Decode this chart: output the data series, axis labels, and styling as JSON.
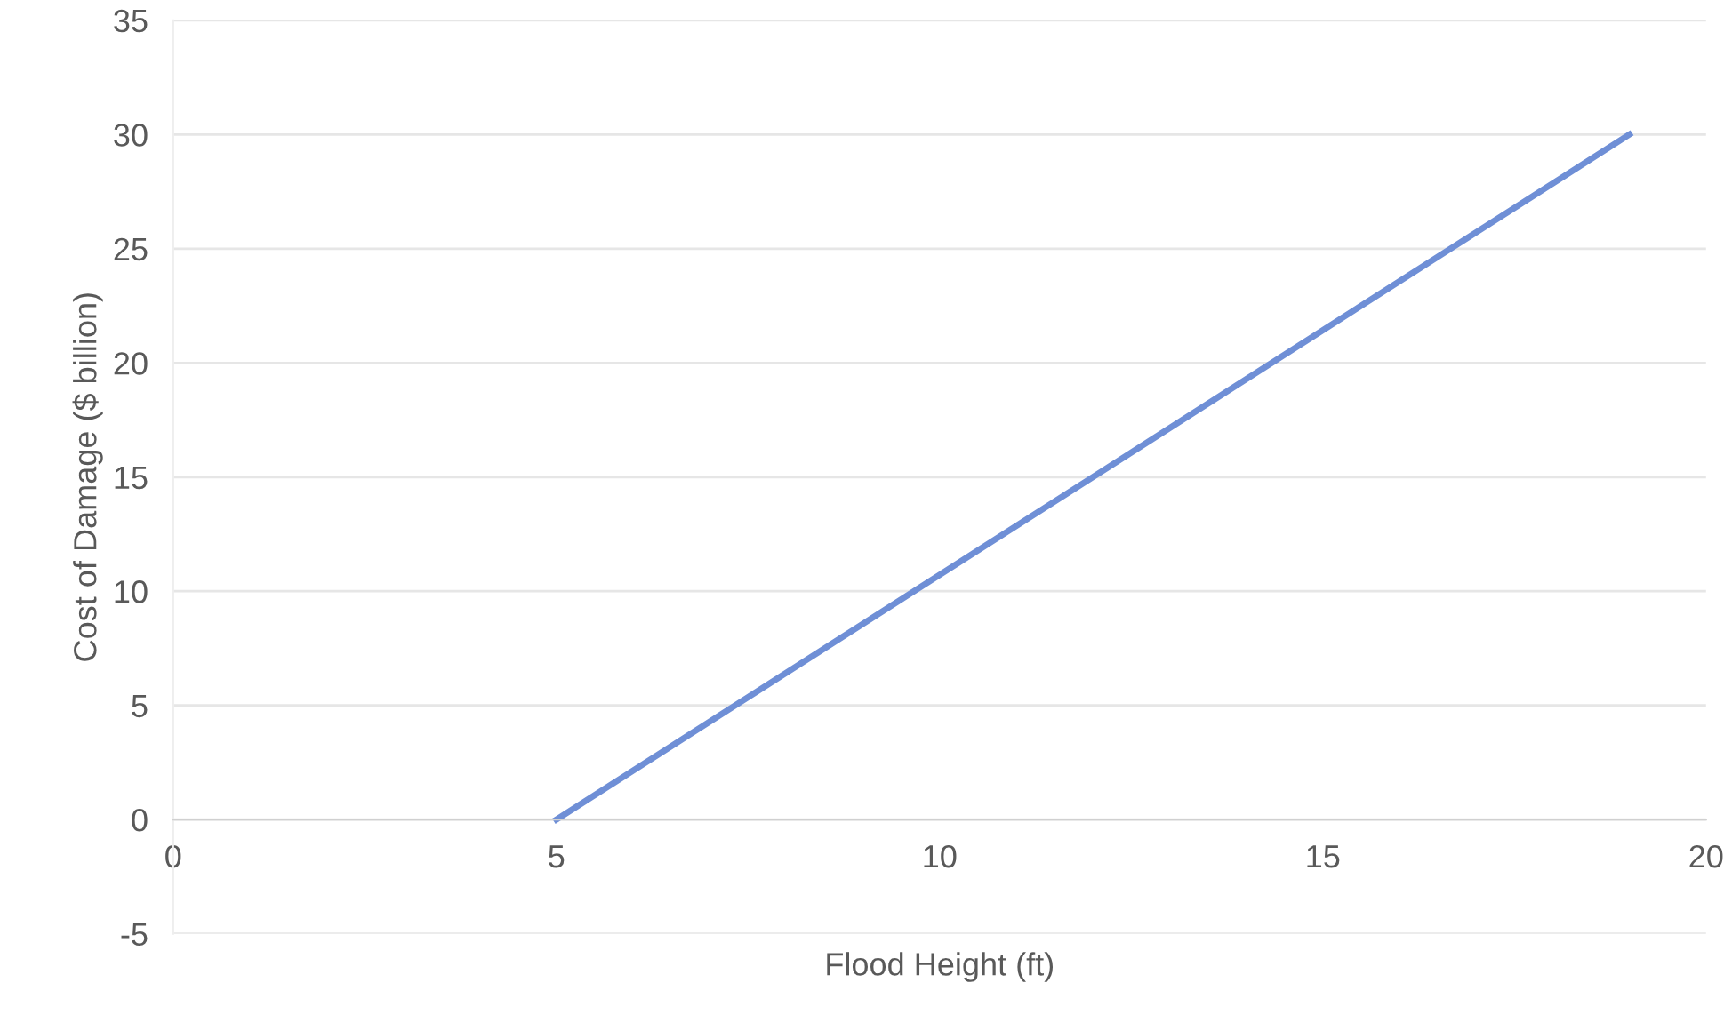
{
  "chart_data": {
    "type": "line",
    "xlabel": "Flood Height (ft)",
    "ylabel": "Cost of Damage ($ billion)",
    "series": [
      {
        "color": "#6f8fd6",
        "x": [
          5,
          19
        ],
        "values": [
          0,
          30
        ]
      }
    ],
    "xlim": [
      0,
      20
    ],
    "xticks": [
      0,
      5,
      10,
      15,
      20
    ],
    "ylim": [
      -5,
      35
    ],
    "yticks": [
      -5,
      0,
      5,
      10,
      15,
      20,
      25,
      30,
      35
    ],
    "grid": "y",
    "marker": "none",
    "line_style": "solid"
  }
}
